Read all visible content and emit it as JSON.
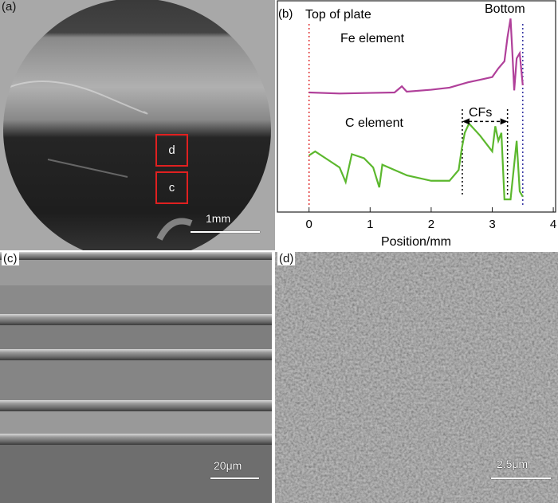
{
  "panels": {
    "a": {
      "label": "(a)",
      "box_d": "d",
      "box_c": "c",
      "scale": "1mm"
    },
    "b": {
      "label": "(b)"
    },
    "c": {
      "label": "(c)",
      "scale": "20μm"
    },
    "d": {
      "label": "(d)",
      "scale": "2.5μm"
    }
  },
  "chart_data": {
    "type": "line",
    "xlabel": "Position/mm",
    "ylabel": "",
    "xlim": [
      -0.5,
      4
    ],
    "ylim": [
      0,
      100
    ],
    "xticks": [
      "0",
      "1",
      "2",
      "3",
      "4"
    ],
    "grid": false,
    "annotations": {
      "top": "Top of plate",
      "bottom": "Bottom",
      "fe": "Fe element",
      "c": "C element",
      "cfs": "CFs"
    },
    "series": [
      {
        "name": "Fe element",
        "color": "#b0409a",
        "x": [
          0,
          0.5,
          1,
          1.4,
          1.52,
          1.6,
          2,
          2.3,
          2.6,
          2.8,
          3.0,
          3.1,
          3.2,
          3.25,
          3.3,
          3.33,
          3.36,
          3.4,
          3.45,
          3.5
        ],
        "y": [
          56.6,
          56.1,
          56.4,
          56.6,
          59.5,
          57,
          57.9,
          58.9,
          61.4,
          62.6,
          63.9,
          68,
          71.4,
          82.8,
          91.6,
          75.2,
          57.6,
          72.7,
          75.2,
          60
        ]
      },
      {
        "name": "C element",
        "color": "#5cb82e",
        "x": [
          0,
          0.1,
          0.3,
          0.5,
          0.6,
          0.7,
          0.9,
          1.05,
          1.15,
          1.2,
          1.4,
          1.6,
          2.0,
          2.3,
          2.45,
          2.5,
          2.55,
          2.62,
          2.8,
          3.0,
          3.05,
          3.1,
          3.15,
          3.2,
          3.3,
          3.4,
          3.45,
          3.5
        ],
        "y": [
          26.8,
          28.7,
          24.9,
          21.1,
          14.2,
          27.4,
          25.5,
          21.1,
          11.7,
          22.4,
          19.9,
          17.4,
          14.8,
          14.8,
          19.9,
          29.9,
          37.5,
          41.9,
          36.2,
          28.7,
          40.6,
          33.7,
          37.5,
          6,
          6,
          33.7,
          9.8,
          7.3
        ]
      }
    ],
    "vertical_lines": [
      {
        "x": 0,
        "color": "#e03030"
      },
      {
        "x": 3.5,
        "color": "#3030a0"
      },
      {
        "x": 2.51,
        "color": "#000000"
      },
      {
        "x": 3.25,
        "color": "#000000"
      }
    ],
    "cfs_arrow": {
      "from": 2.51,
      "to": 3.25,
      "y": 42.9
    }
  }
}
